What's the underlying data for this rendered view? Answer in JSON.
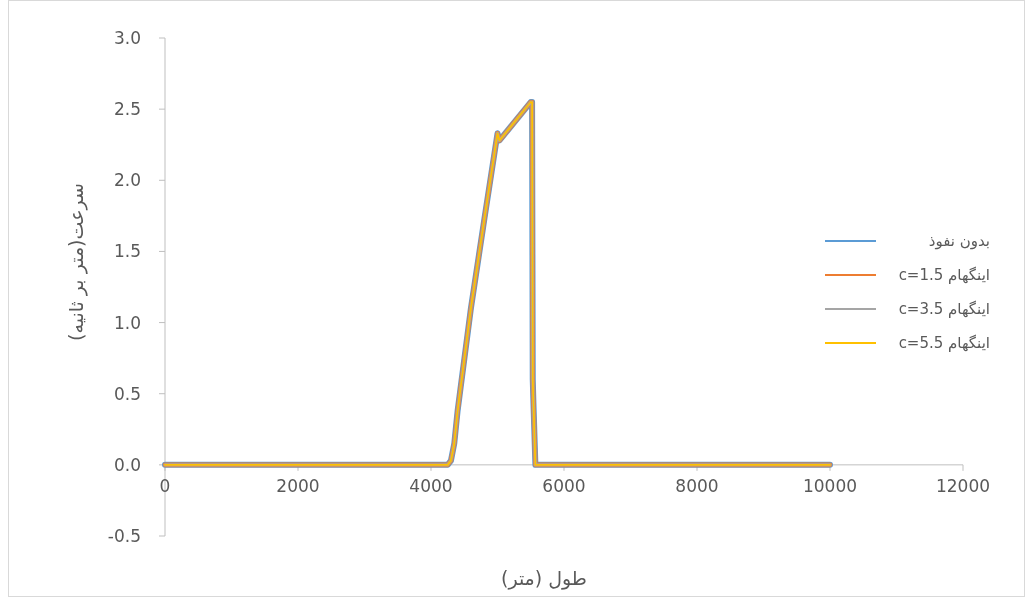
{
  "chart_data": {
    "type": "line",
    "xlabel": "طول (متر)",
    "ylabel": "سرعت(متر بر ثانیه)",
    "xlim": [
      0,
      12000
    ],
    "xticks": [
      0,
      2000,
      4000,
      6000,
      8000,
      10000,
      12000
    ],
    "ylim": [
      -0.5,
      3
    ],
    "yticks": [
      {
        "value": -0.5,
        "label": "-0.5"
      },
      {
        "value": 0,
        "label": "0.0"
      },
      {
        "value": 0.5,
        "label": "0.5"
      },
      {
        "value": 1,
        "label": "1.0"
      },
      {
        "value": 1.5,
        "label": "1.5"
      },
      {
        "value": 2,
        "label": "2.0"
      },
      {
        "value": 2.5,
        "label": "2.5"
      },
      {
        "value": 3,
        "label": "3.0"
      }
    ],
    "x": [
      0,
      2000,
      4000,
      4250,
      4300,
      4350,
      4400,
      4600,
      4800,
      5000,
      5030,
      5500,
      5520,
      5530,
      5540,
      5570,
      6000,
      8000,
      10000
    ],
    "series": [
      {
        "name": "بدون نفوذ",
        "color": "#5b9bd5",
        "values": [
          0,
          0,
          0,
          0,
          0.03,
          0.15,
          0.38,
          1.1,
          1.72,
          2.33,
          2.28,
          2.55,
          2.55,
          0.6,
          0.44,
          0,
          0,
          0,
          0
        ]
      },
      {
        "name": "اینگهام c=1.5",
        "color": "#ed7d31",
        "values": [
          0,
          0,
          0,
          0,
          0.03,
          0.15,
          0.38,
          1.1,
          1.72,
          2.33,
          2.28,
          2.55,
          2.55,
          0.6,
          0.44,
          0,
          0,
          0,
          0
        ]
      },
      {
        "name": "اینگهام c=3.5",
        "color": "#a5a5a5",
        "values": [
          0,
          0,
          0,
          0,
          0.03,
          0.15,
          0.38,
          1.1,
          1.72,
          2.33,
          2.28,
          2.55,
          2.55,
          0.6,
          0.44,
          0,
          0,
          0,
          0
        ]
      },
      {
        "name": "اینگهام c=5.5",
        "color": "#ffc000",
        "values": [
          0,
          0,
          0,
          0,
          0.03,
          0.15,
          0.38,
          1.1,
          1.72,
          2.33,
          2.28,
          2.55,
          2.55,
          0.6,
          0.44,
          0,
          0,
          0,
          0
        ]
      }
    ],
    "legend": "right",
    "grid": false,
    "marker": "none",
    "line_style": "solid"
  }
}
